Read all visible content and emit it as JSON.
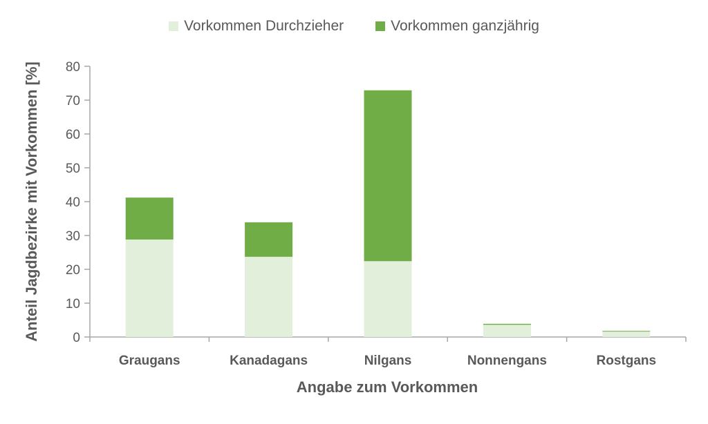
{
  "chart_data": {
    "type": "bar",
    "stacked": true,
    "title": "",
    "xlabel": "Angabe zum Vorkommen",
    "ylabel": "Anteil  Jagdbezirke mit Vorkommen [%]",
    "ylim": [
      0,
      80
    ],
    "yticks": [
      0,
      10,
      20,
      30,
      40,
      50,
      60,
      70,
      80
    ],
    "grid": false,
    "legend_position": "top",
    "categories": [
      "Graugans",
      "Kanadagans",
      "Nilgans",
      "Nonnengans",
      "Rostgans"
    ],
    "series": [
      {
        "name": "Vorkommen Durchzieher",
        "color": "#e2efda",
        "values": [
          28.8,
          23.7,
          22.4,
          3.6,
          1.6
        ]
      },
      {
        "name": "Vorkommen ganzjährig",
        "color": "#70ad47",
        "values": [
          12.4,
          10.2,
          50.5,
          0.3,
          0.2
        ]
      }
    ]
  },
  "legend": {
    "items": [
      {
        "label": "Vorkommen Durchzieher",
        "color": "#e2efda"
      },
      {
        "label": "Vorkommen ganzjährig",
        "color": "#70ad47"
      }
    ]
  },
  "axes": {
    "x_title": "Angabe zum Vorkommen",
    "y_title": "Anteil  Jagdbezirke mit Vorkommen [%]"
  }
}
